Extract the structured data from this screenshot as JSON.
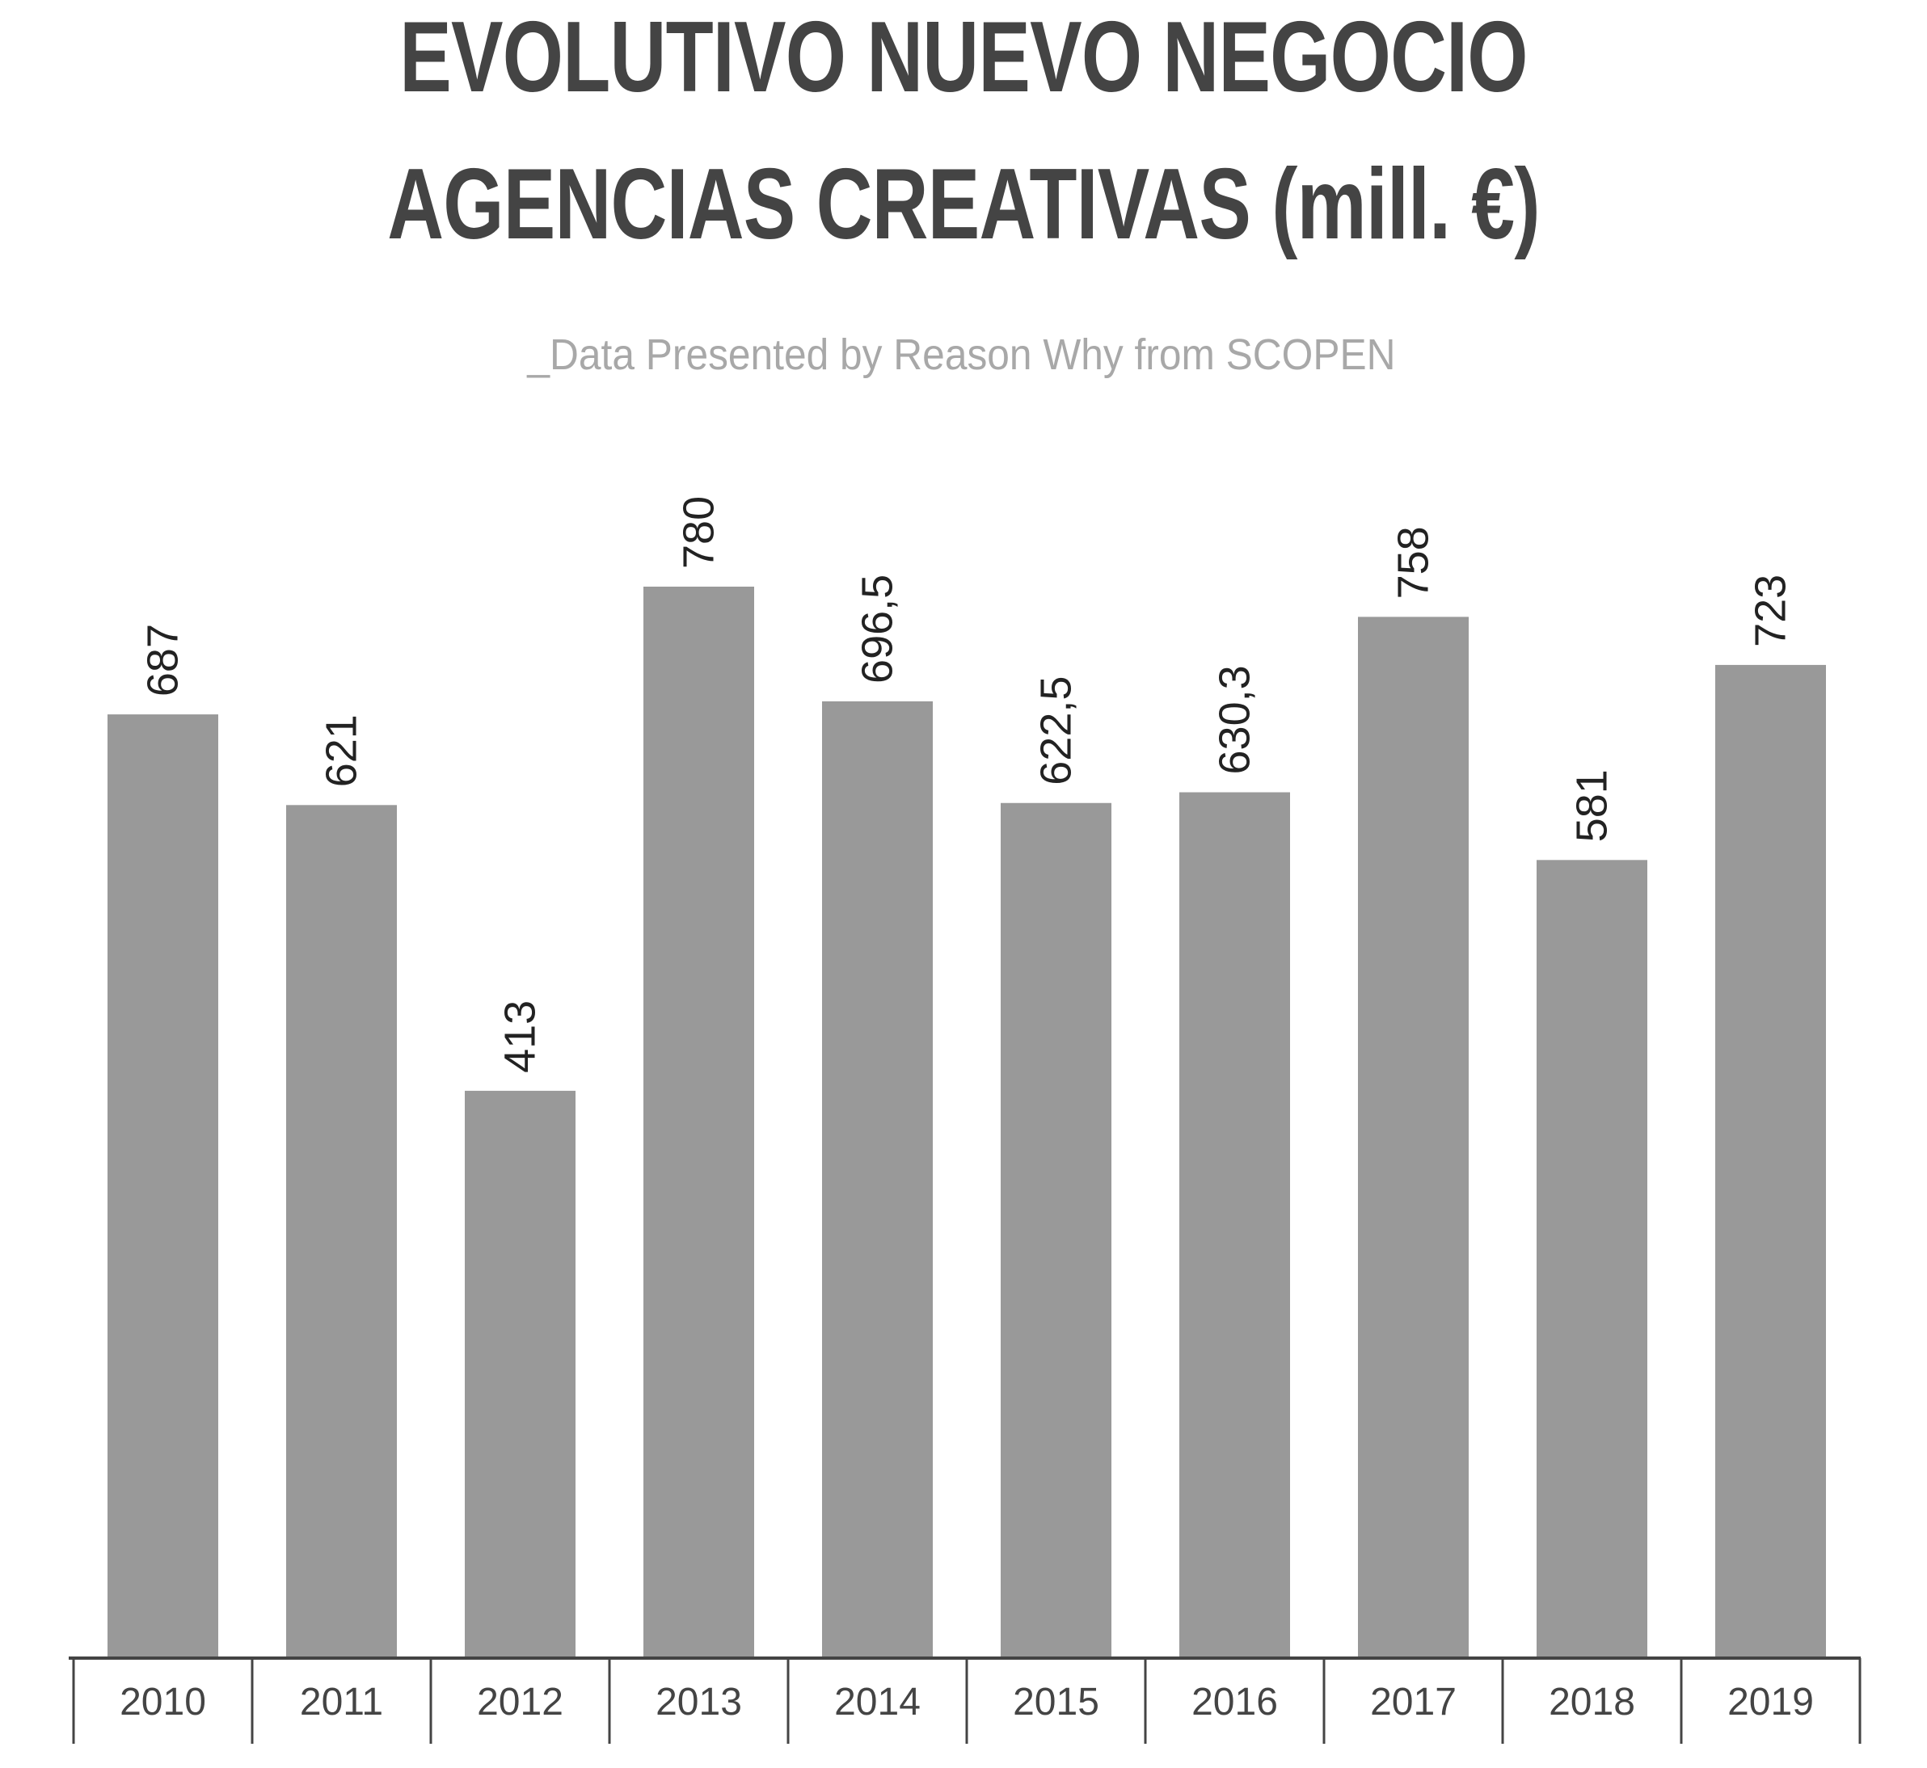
{
  "title_line1": "EVOLUTIVO NUEVO NEGOCIO",
  "title_line2": "AGENCIAS CREATIVAS (mill. €)",
  "subtitle": "_Data Presented by Reason Why from SCOPEN",
  "colors": {
    "bar": "#999999",
    "axis": "#444444",
    "text": "#222222",
    "tick_text": "#444444"
  },
  "chart_data": {
    "type": "bar",
    "categories": [
      "2010",
      "2011",
      "2012",
      "2013",
      "2014",
      "2015",
      "2016",
      "2017",
      "2018",
      "2019"
    ],
    "values": [
      687,
      621,
      413,
      780,
      696.5,
      622.5,
      630.3,
      758,
      581,
      723
    ],
    "value_labels": [
      "687",
      "621",
      "413",
      "780",
      "696,5",
      "622,5",
      "630,3",
      "758",
      "581",
      "723"
    ],
    "title": "EVOLUTIVO NUEVO NEGOCIO AGENCIAS CREATIVAS (mill. €)",
    "xlabel": "",
    "ylabel": "",
    "ylim": [
      0,
      780
    ],
    "grid": false,
    "legend": "none"
  }
}
